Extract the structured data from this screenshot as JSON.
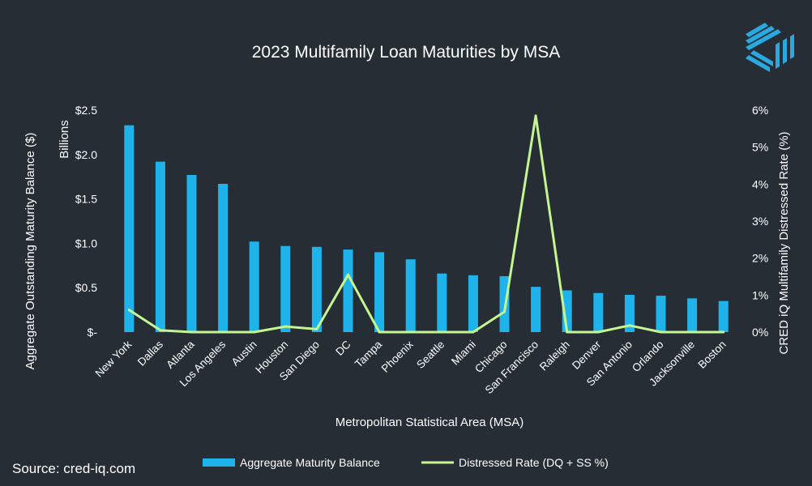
{
  "chart_data": {
    "type": "bar",
    "title": "2023 Multifamily Loan Maturities by MSA",
    "xlabel": "Metropolitan Statistical Area (MSA)",
    "ylabel": "Aggregate Outstanding Maturity Balance ($)",
    "ylabel_unit": "Billions",
    "y2label": "CRED iQ  Multifamily Distressed Rate (%)",
    "ylim": [
      0,
      2.5
    ],
    "y2lim": [
      0,
      6
    ],
    "y_ticks": [
      {
        "value": 0,
        "label": "$-"
      },
      {
        "value": 0.5,
        "label": "$0.5"
      },
      {
        "value": 1.0,
        "label": "$1.0"
      },
      {
        "value": 1.5,
        "label": "$1.5"
      },
      {
        "value": 2.0,
        "label": "$2.0"
      },
      {
        "value": 2.5,
        "label": "$2.5"
      }
    ],
    "y2_ticks": [
      {
        "value": 0,
        "label": "0%"
      },
      {
        "value": 1,
        "label": "1%"
      },
      {
        "value": 2,
        "label": "2%"
      },
      {
        "value": 3,
        "label": "3%"
      },
      {
        "value": 4,
        "label": "4%"
      },
      {
        "value": 5,
        "label": "5%"
      },
      {
        "value": 6,
        "label": "6%"
      }
    ],
    "categories": [
      "New York",
      "Dallas",
      "Atlanta",
      "Los Angeles",
      "Austin",
      "Houston",
      "San Diego",
      "DC",
      "Tampa",
      "Phoenix",
      "Seattle",
      "Miami",
      "Chicago",
      "San Francisco",
      "Raleigh",
      "Denver",
      "San Antonio",
      "Orlando",
      "Jacksonville",
      "Boston"
    ],
    "series": [
      {
        "name": "Aggregate Maturity Balance",
        "type": "bar",
        "axis": "left",
        "color": "#1fb3ec",
        "values": [
          2.33,
          1.92,
          1.77,
          1.67,
          1.02,
          0.97,
          0.96,
          0.93,
          0.9,
          0.82,
          0.66,
          0.64,
          0.63,
          0.51,
          0.47,
          0.44,
          0.42,
          0.41,
          0.38,
          0.35
        ]
      },
      {
        "name": "Distressed Rate (DQ + SS %)",
        "type": "line",
        "axis": "right",
        "color": "#c4f590",
        "values": [
          0.6,
          0.05,
          0.0,
          0.0,
          0.0,
          0.15,
          0.08,
          1.55,
          0.0,
          0.0,
          0.0,
          0.0,
          0.55,
          5.85,
          0.0,
          0.0,
          0.18,
          0.0,
          0.0,
          0.0
        ]
      }
    ],
    "legend_position": "bottom-center",
    "grid": false
  },
  "footer": {
    "source": "Source: cred-iq.com"
  },
  "colors": {
    "background": "#262d35",
    "bar": "#1fb3ec",
    "line": "#c4f590",
    "logo": "#2aa8e0"
  },
  "logo": {
    "icon": "cred-iq-logo-icon"
  }
}
